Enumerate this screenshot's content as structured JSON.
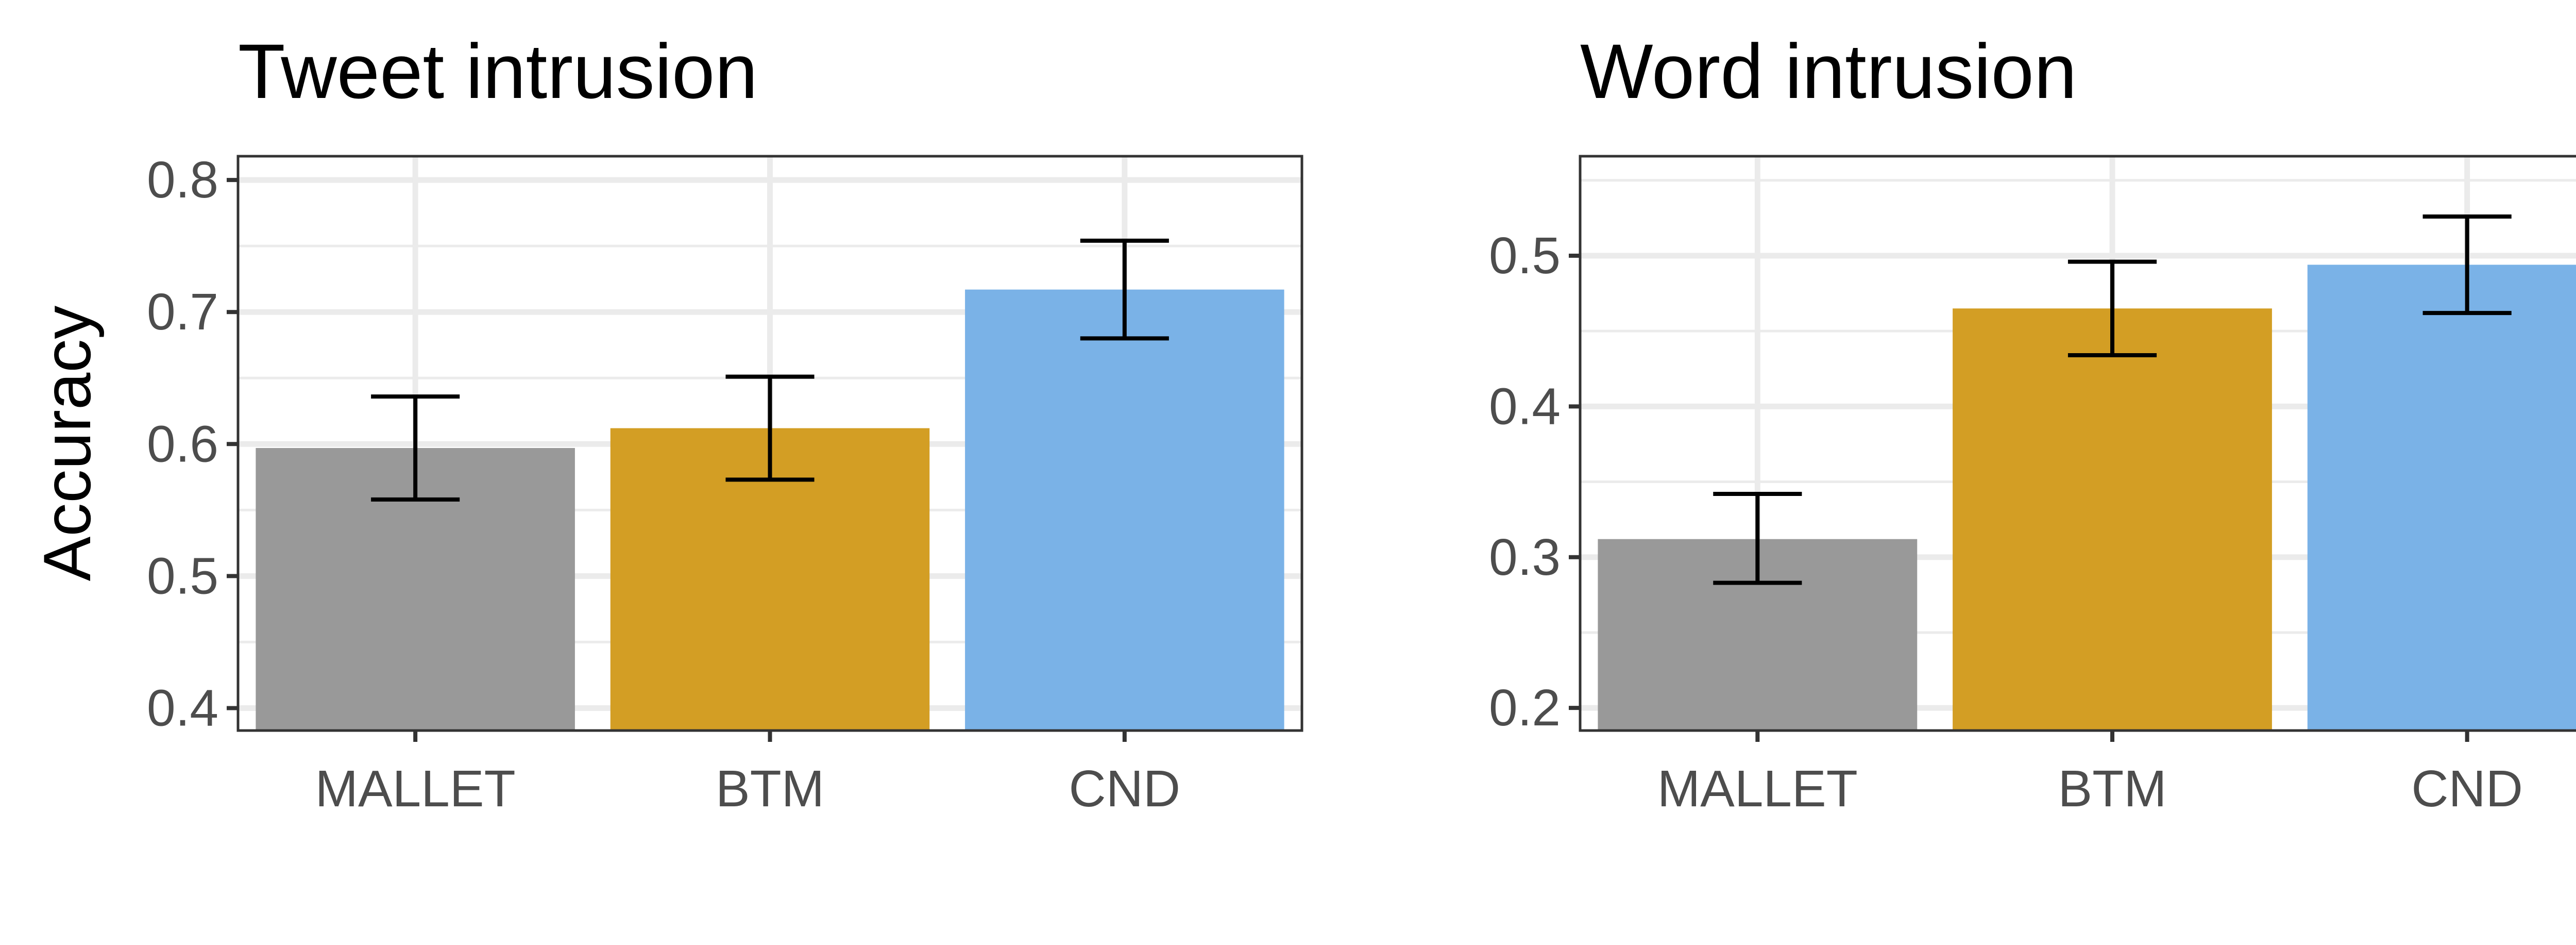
{
  "chart_data": [
    {
      "type": "bar",
      "title": "Tweet intrusion",
      "xlabel": "",
      "ylabel": "Accuracy",
      "categories": [
        "MALLET",
        "BTM",
        "CND"
      ],
      "values": [
        0.597,
        0.612,
        0.717
      ],
      "error_low": [
        0.558,
        0.573,
        0.68
      ],
      "error_high": [
        0.636,
        0.651,
        0.754
      ],
      "ylim": [
        0.383,
        0.818
      ],
      "yticks": [
        0.4,
        0.5,
        0.6,
        0.7,
        0.8
      ],
      "ytick_labels": [
        "0.4",
        "0.5",
        "0.6",
        "0.7",
        "0.8"
      ],
      "colors": [
        "#999999",
        "#D39E24",
        "#7AB2E7"
      ],
      "grid": true,
      "legend": "none"
    },
    {
      "type": "bar",
      "title": "Word intrusion",
      "xlabel": "",
      "ylabel": "",
      "categories": [
        "MALLET",
        "BTM",
        "CND"
      ],
      "values": [
        0.312,
        0.465,
        0.494
      ],
      "error_low": [
        0.283,
        0.434,
        0.462
      ],
      "error_high": [
        0.342,
        0.496,
        0.526
      ],
      "ylim": [
        0.185,
        0.566
      ],
      "yticks": [
        0.2,
        0.3,
        0.4,
        0.5
      ],
      "ytick_labels": [
        "0.2",
        "0.3",
        "0.4",
        "0.5"
      ],
      "colors": [
        "#999999",
        "#D39E24",
        "#7AB2E7"
      ],
      "grid": true,
      "legend": "none"
    }
  ]
}
